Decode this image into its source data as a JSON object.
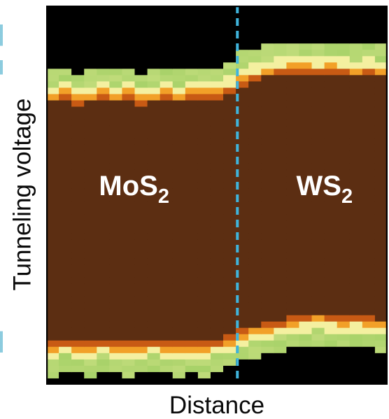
{
  "chart_data": {
    "type": "heatmap",
    "xlabel": "Distance",
    "ylabel": "Tunneling voltage",
    "region_labels": [
      {
        "text": "MoS",
        "sub": "2"
      },
      {
        "text": "WS",
        "sub": "2"
      }
    ],
    "boundary_position_fraction": 0.56,
    "columns": 27,
    "rows": 60,
    "gap_fraction": {
      "top": [
        0.255,
        0.25,
        0.26,
        0.255,
        0.25,
        0.255,
        0.25,
        0.26,
        0.255,
        0.25,
        0.255,
        0.25,
        0.245,
        0.25,
        0.235,
        0.21,
        0.2,
        0.19,
        0.185,
        0.18,
        0.18,
        0.185,
        0.18,
        0.185,
        0.19,
        0.185,
        0.19
      ],
      "bottom": [
        0.89,
        0.88,
        0.885,
        0.89,
        0.88,
        0.885,
        0.89,
        0.885,
        0.88,
        0.885,
        0.89,
        0.885,
        0.89,
        0.88,
        0.87,
        0.855,
        0.845,
        0.835,
        0.83,
        0.82,
        0.815,
        0.81,
        0.815,
        0.82,
        0.815,
        0.82,
        0.825
      ]
    },
    "colors": {
      "gap": "#5c2e12",
      "dark_green": "#1c6b2d",
      "green": "#3f9b3f",
      "light_green": "#a8d269",
      "pale_yellow": "#f4f0a0",
      "orange": "#f2a028",
      "dark_orange": "#c85a14",
      "boundary_line": "#3fb4dc",
      "label_text": "#ffffff",
      "frame": "#000000"
    },
    "grid": false
  }
}
